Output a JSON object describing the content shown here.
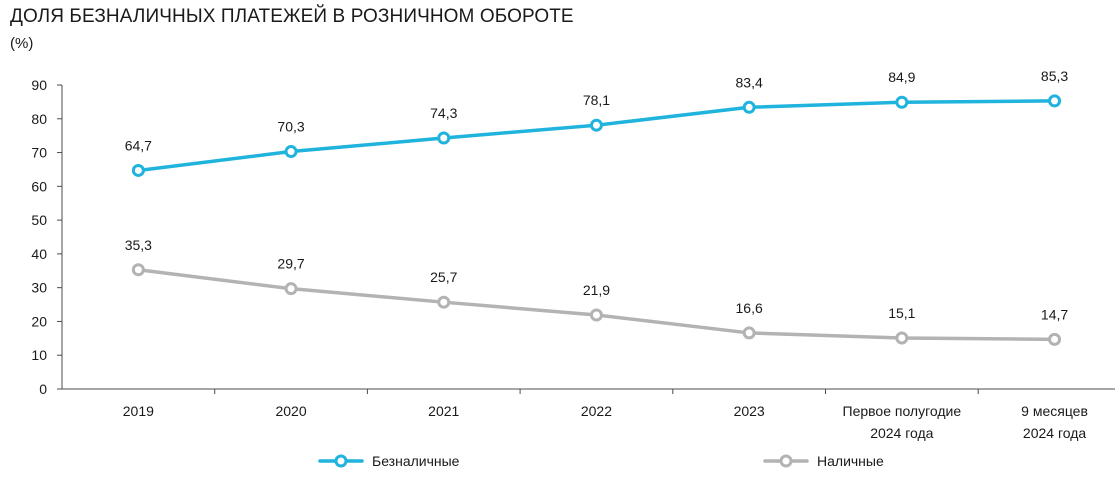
{
  "title": "ДОЛЯ БЕЗНАЛИЧНЫХ ПЛАТЕЖЕЙ В РОЗНИЧНОМ ОБОРОТЕ",
  "unit": "(%)",
  "chart_data": {
    "type": "line",
    "title": "ДОЛЯ БЕЗНАЛИЧНЫХ ПЛАТЕЖЕЙ В РОЗНИЧНОМ ОБОРОТЕ",
    "ylabel": "(%)",
    "xlabel": "",
    "ylim": [
      0,
      90
    ],
    "yticks": [
      0,
      10,
      20,
      30,
      40,
      50,
      60,
      70,
      80,
      90
    ],
    "categories": [
      [
        "2019"
      ],
      [
        "2020"
      ],
      [
        "2021"
      ],
      [
        "2022"
      ],
      [
        "2023"
      ],
      [
        "Первое полугодие",
        "2024 года"
      ],
      [
        "9 месяцев",
        "2024 года"
      ]
    ],
    "series": [
      {
        "name": "Безналичные",
        "color": "#1fb3dd",
        "values": [
          64.7,
          70.3,
          74.3,
          78.1,
          83.4,
          84.9,
          85.3
        ],
        "labels": [
          "64,7",
          "70,3",
          "74,3",
          "78,1",
          "83,4",
          "84,9",
          "85,3"
        ]
      },
      {
        "name": "Наличные",
        "color": "#b3b3b3",
        "values": [
          35.3,
          29.7,
          25.7,
          21.9,
          16.6,
          15.1,
          14.7
        ],
        "labels": [
          "35,3",
          "29,7",
          "25,7",
          "21,9",
          "16,6",
          "15,1",
          "14,7"
        ]
      }
    ],
    "legend_position": "bottom"
  }
}
